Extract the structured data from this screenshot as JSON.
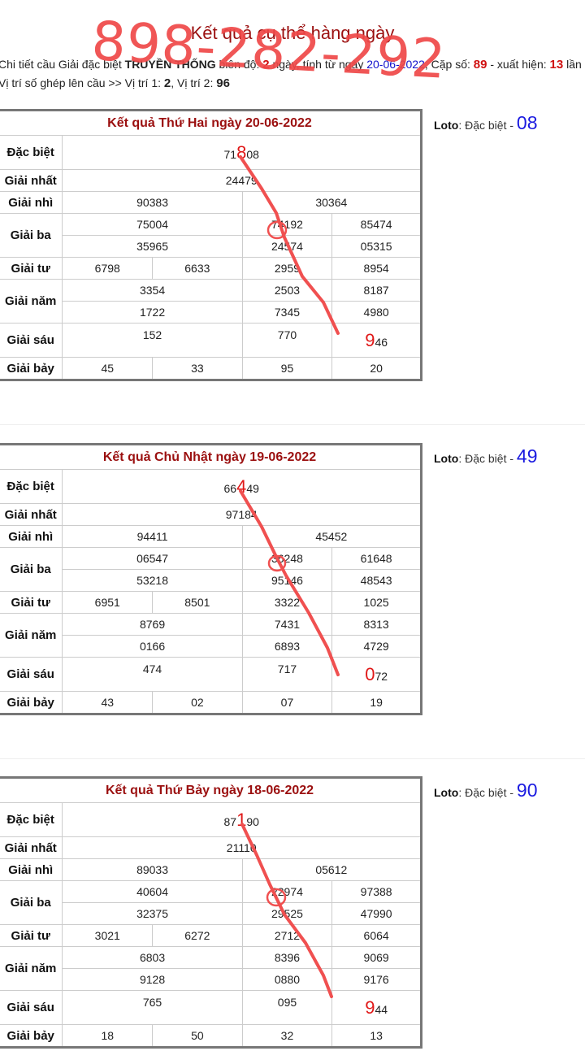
{
  "page": {
    "title": "Kết quả cụ thể hàng ngày",
    "overlay_text": "898-282-292",
    "summary_line1": {
      "p1": "Chi tiết cầu Giải đặc biệt ",
      "mode": "TRUYỀN THỐNG",
      "p2": " biên độ: ",
      "amplitude": "2",
      "p3": " ngày, tính từ ngày ",
      "date": "20-06-2022",
      "p4": ", Cặp số: ",
      "pair": "89",
      "p5": " - xuất hiện: ",
      "count": "13",
      "p6": " lần"
    },
    "summary_line2": {
      "p1": "Vị trí số ghép lên cầu >> Vị trí 1: ",
      "pos1": "2",
      "p2": ", Vị trí 2: ",
      "pos2": "96"
    }
  },
  "labels": {
    "db": "Đặc biệt",
    "g1": "Giải nhất",
    "g2": "Giải nhì",
    "g3": "Giải ba",
    "g4": "Giải tư",
    "g5": "Giải năm",
    "g6": "Giải sáu",
    "g7": "Giải bảy",
    "loto": "Loto",
    "loto_rest": ": Đặc biệt - "
  },
  "results": [
    {
      "title": "Kết quả Thứ Hai ngày 20-06-2022",
      "loto_value": "08",
      "db": [
        "71",
        "8",
        "08"
      ],
      "g1": "24479",
      "g2": [
        "90383",
        "30364"
      ],
      "g3a": [
        "75004",
        "74192",
        "85474"
      ],
      "g3b": [
        "35965",
        "24574",
        "05315"
      ],
      "g4": [
        "6798",
        "6633",
        "2959",
        "8954"
      ],
      "g5a": [
        "3354",
        "2503",
        "8187"
      ],
      "g5b": [
        "1722",
        "7345",
        "4980"
      ],
      "g6": [
        "152",
        "770",
        "9",
        "46"
      ],
      "g7": [
        "45",
        "33",
        "95",
        "20"
      ]
    },
    {
      "title": "Kết quả Chủ Nhật ngày 19-06-2022",
      "loto_value": "49",
      "db": [
        "66",
        "4",
        "49"
      ],
      "g1": "97184",
      "g2": [
        "94411",
        "45452"
      ],
      "g3a": [
        "06547",
        "36248",
        "61648"
      ],
      "g3b": [
        "53218",
        "95146",
        "48543"
      ],
      "g4": [
        "6951",
        "8501",
        "3322",
        "1025"
      ],
      "g5a": [
        "8769",
        "7431",
        "8313"
      ],
      "g5b": [
        "0166",
        "6893",
        "4729"
      ],
      "g6": [
        "474",
        "717",
        "0",
        "72"
      ],
      "g7": [
        "43",
        "02",
        "07",
        "19"
      ]
    },
    {
      "title": "Kết quả Thứ Bảy ngày 18-06-2022",
      "loto_value": "90",
      "db": [
        "87",
        "1",
        "90"
      ],
      "g1": "21110",
      "g2": [
        "89033",
        "05612"
      ],
      "g3a": [
        "40604",
        "22974",
        "97388"
      ],
      "g3b": [
        "32375",
        "29525",
        "47990"
      ],
      "g4": [
        "3021",
        "6272",
        "2712",
        "6064"
      ],
      "g5a": [
        "6803",
        "8396",
        "9069"
      ],
      "g5b": [
        "9128",
        "0880",
        "9176"
      ],
      "g6": [
        "765",
        "095",
        "9",
        "44"
      ],
      "g7": [
        "18",
        "50",
        "32",
        "13"
      ]
    }
  ]
}
